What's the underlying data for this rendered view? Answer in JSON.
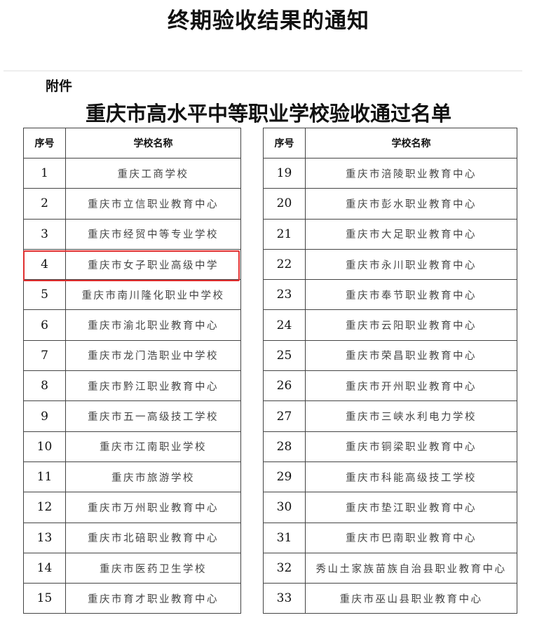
{
  "title": "终期验收结果的通知",
  "attachment_label": "附件",
  "subtitle": "重庆市高水平中等职业学校验收通过名单",
  "headers": {
    "seq": "序号",
    "name": "学校名称"
  },
  "highlight_color": "#e03030",
  "left_rows": [
    {
      "seq": "1",
      "name": "重庆工商学校"
    },
    {
      "seq": "2",
      "name": "重庆市立信职业教育中心"
    },
    {
      "seq": "3",
      "name": "重庆市经贸中等专业学校"
    },
    {
      "seq": "4",
      "name": "重庆市女子职业高级中学",
      "highlighted": true
    },
    {
      "seq": "5",
      "name": "重庆市南川隆化职业中学校"
    },
    {
      "seq": "6",
      "name": "重庆市渝北职业教育中心"
    },
    {
      "seq": "7",
      "name": "重庆市龙门浩职业中学校"
    },
    {
      "seq": "8",
      "name": "重庆市黔江职业教育中心"
    },
    {
      "seq": "9",
      "name": "重庆市五一高级技工学校"
    },
    {
      "seq": "10",
      "name": "重庆市江南职业学校"
    },
    {
      "seq": "11",
      "name": "重庆市旅游学校"
    },
    {
      "seq": "12",
      "name": "重庆市万州职业教育中心"
    },
    {
      "seq": "13",
      "name": "重庆市北碚职业教育中心"
    },
    {
      "seq": "14",
      "name": "重庆市医药卫生学校"
    },
    {
      "seq": "15",
      "name": "重庆市育才职业教育中心"
    }
  ],
  "right_rows": [
    {
      "seq": "19",
      "name": "重庆市涪陵职业教育中心"
    },
    {
      "seq": "20",
      "name": "重庆市彭水职业教育中心"
    },
    {
      "seq": "21",
      "name": "重庆市大足职业教育中心"
    },
    {
      "seq": "22",
      "name": "重庆市永川职业教育中心"
    },
    {
      "seq": "23",
      "name": "重庆市奉节职业教育中心"
    },
    {
      "seq": "24",
      "name": "重庆市云阳职业教育中心"
    },
    {
      "seq": "25",
      "name": "重庆市荣昌职业教育中心"
    },
    {
      "seq": "26",
      "name": "重庆市开州职业教育中心"
    },
    {
      "seq": "27",
      "name": "重庆市三峡水利电力学校"
    },
    {
      "seq": "28",
      "name": "重庆市铜梁职业教育中心"
    },
    {
      "seq": "29",
      "name": "重庆市科能高级技工学校"
    },
    {
      "seq": "30",
      "name": "重庆市垫江职业教育中心"
    },
    {
      "seq": "31",
      "name": "重庆市巴南职业教育中心"
    },
    {
      "seq": "32",
      "name": "秀山土家族苗族自治县职业教育中心"
    },
    {
      "seq": "33",
      "name": "重庆市巫山县职业教育中心"
    }
  ]
}
